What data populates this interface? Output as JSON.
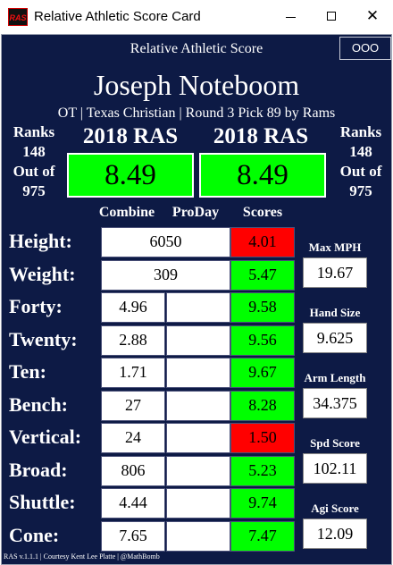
{
  "window": {
    "title": "Relative Athletic Score Card",
    "icon_text": "RAS",
    "close_glyph": "✕"
  },
  "header": {
    "title": "Relative Athletic Score",
    "menu_label": "OOO"
  },
  "player": {
    "name": "Joseph Noteboom",
    "info": "OT | Texas Christian | Round 3 Pick 89 by Rams"
  },
  "left_rank": {
    "label": "Ranks",
    "rank": "148",
    "out_of_label": "Out of",
    "total": "975"
  },
  "right_rank": {
    "label": "Ranks",
    "rank": "148",
    "out_of_label": "Out of",
    "total": "975"
  },
  "ras_left": {
    "title": "2018 RAS",
    "score": "8.49"
  },
  "ras_right": {
    "title": "2018 RAS",
    "score": "8.49"
  },
  "columns": {
    "combine": "Combine",
    "proday": "ProDay",
    "scores": "Scores"
  },
  "metrics": [
    {
      "label": "Height:",
      "combine": "6050",
      "proday": "",
      "score": "4.01",
      "color": "#ff0000",
      "merged": true
    },
    {
      "label": "Weight:",
      "combine": "309",
      "proday": "",
      "score": "5.47",
      "color": "#00ff00",
      "merged": true
    },
    {
      "label": "Forty:",
      "combine": "4.96",
      "proday": "",
      "score": "9.58",
      "color": "#00ff00",
      "merged": false
    },
    {
      "label": "Twenty:",
      "combine": "2.88",
      "proday": "",
      "score": "9.56",
      "color": "#00ff00",
      "merged": false
    },
    {
      "label": "Ten:",
      "combine": "1.71",
      "proday": "",
      "score": "9.67",
      "color": "#00ff00",
      "merged": false
    },
    {
      "label": "Bench:",
      "combine": "27",
      "proday": "",
      "score": "8.28",
      "color": "#00ff00",
      "merged": false
    },
    {
      "label": "Vertical:",
      "combine": "24",
      "proday": "",
      "score": "1.50",
      "color": "#ff0000",
      "merged": false
    },
    {
      "label": "Broad:",
      "combine": "806",
      "proday": "",
      "score": "5.23",
      "color": "#00ff00",
      "merged": false
    },
    {
      "label": "Shuttle:",
      "combine": "4.44",
      "proday": "",
      "score": "9.74",
      "color": "#00ff00",
      "merged": false
    },
    {
      "label": "Cone:",
      "combine": "7.65",
      "proday": "",
      "score": "7.47",
      "color": "#00ff00",
      "merged": false
    }
  ],
  "side_stats": [
    {
      "label": "Max MPH",
      "value": "19.67"
    },
    {
      "label": "Hand Size",
      "value": "9.625"
    },
    {
      "label": "Arm Length",
      "value": "34.375"
    },
    {
      "label": "Spd Score",
      "value": "102.11"
    },
    {
      "label": "Agi Score",
      "value": "12.09"
    }
  ],
  "footer": "RAS v.1.1.1 | Courtesy Kent Lee Platte | @MathBomb"
}
